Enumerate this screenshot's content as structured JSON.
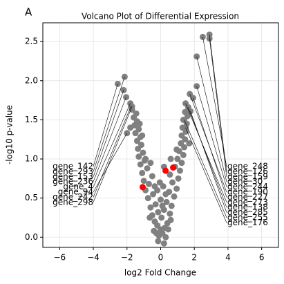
{
  "chart_data": {
    "type": "scatter",
    "panel_label": "A",
    "title": "Volcano Plot of Differential Expression",
    "xlabel": "log2 Fold Change",
    "ylabel": "-log10 p-value",
    "xlim": [
      -7,
      7
    ],
    "ylim": [
      -0.13,
      2.74
    ],
    "xticks": [
      {
        "value": -6,
        "label": "−6"
      },
      {
        "value": -4,
        "label": "−4"
      },
      {
        "value": -2,
        "label": "−2"
      },
      0,
      2,
      4,
      6
    ],
    "yticks": [
      {
        "value": 0,
        "label": "0.0"
      },
      0.5,
      {
        "value": 1,
        "label": "1.0"
      },
      1.5,
      {
        "value": 2,
        "label": "2.0"
      },
      2.5
    ],
    "grid": true,
    "series": [
      {
        "color": "#808080",
        "x": [
          -0.1,
          0.1,
          0.0,
          -0.2,
          0.25,
          -0.35,
          0.4,
          0.05,
          -0.5,
          0.55,
          -0.15,
          0.2,
          -0.6,
          0.65,
          -0.3,
          0.35,
          0.0,
          -0.75,
          0.8,
          -0.45,
          0.5,
          -0.9,
          0.95,
          -0.2,
          0.15,
          -0.7,
          0.7,
          -1.0,
          1.05,
          -0.5,
          0.55,
          -1.1,
          1.15,
          -0.8,
          0.85,
          -1.2,
          1.25,
          -0.95,
          1.0,
          -1.3,
          1.35,
          -1.05,
          1.1,
          -1.35,
          1.4,
          -1.15,
          1.2,
          -1.4,
          1.45,
          -1.2,
          1.25,
          -1.5,
          1.5,
          -1.3,
          1.3,
          -1.55,
          1.55,
          -1.4,
          1.35,
          -1.6,
          1.6,
          -1.45,
          1.45,
          -1.7,
          -1.1,
          -1.25,
          -0.25,
          0.3,
          -0.4,
          0.45,
          0.6,
          -0.65,
          0.1,
          -0.05,
          0.3,
          -0.35,
          0.2,
          -0.9,
          0.95,
          -0.6,
          0.6,
          -0.15,
          0.2,
          1.7,
          -1.8
        ],
        "values": [
          0.02,
          0.05,
          0.1,
          0.15,
          0.12,
          0.2,
          0.18,
          0.25,
          0.28,
          0.3,
          0.32,
          0.35,
          0.38,
          0.4,
          0.42,
          0.45,
          0.48,
          0.5,
          0.52,
          0.55,
          0.58,
          0.6,
          0.62,
          0.6,
          0.65,
          0.68,
          0.7,
          0.72,
          0.75,
          0.78,
          0.8,
          0.82,
          0.85,
          0.88,
          0.9,
          0.93,
          0.95,
          0.98,
          1.0,
          1.03,
          1.05,
          1.08,
          1.1,
          1.13,
          1.15,
          1.18,
          1.2,
          1.23,
          1.25,
          1.28,
          1.3,
          1.33,
          1.35,
          1.38,
          1.4,
          1.43,
          1.45,
          1.48,
          1.5,
          1.53,
          1.55,
          1.58,
          1.6,
          1.63,
          1.3,
          1.45,
          0.05,
          0.0,
          0.08,
          0.1,
          0.22,
          0.25,
          0.4,
          0.7,
          0.55,
          0.65,
          0.9,
          1.0,
          1.12,
          0.95,
          1.0,
          -0.05,
          -0.08,
          1.2,
          1.4
        ]
      },
      {
        "color": "#ff0000",
        "x": [
          -1.07,
          0.29,
          0.74
        ],
        "values": [
          0.64,
          0.85,
          0.89
        ]
      }
    ],
    "annotations_left": [
      {
        "text": "gene_142",
        "x": -2.55,
        "y": 1.96
      },
      {
        "text": "gene_293",
        "x": -2.14,
        "y": 2.05
      },
      {
        "text": "gene_153",
        "x": -2.2,
        "y": 1.88
      },
      {
        "text": "gene_236",
        "x": -2.05,
        "y": 1.79
      },
      {
        "text": "gene_4",
        "x": -1.8,
        "y": 1.71
      },
      {
        "text": "gene_94",
        "x": -2.0,
        "y": 1.33
      },
      {
        "text": "gene_242",
        "x": -1.75,
        "y": 1.68
      },
      {
        "text": "gene_298",
        "x": -1.7,
        "y": 1.67
      }
    ],
    "annotations_right": [
      {
        "text": "gene_248",
        "x": 2.5,
        "y": 2.56
      },
      {
        "text": "gene_126",
        "x": 2.9,
        "y": 2.59
      },
      {
        "text": "gene_159",
        "x": 2.9,
        "y": 2.54
      },
      {
        "text": "gene_30",
        "x": 2.14,
        "y": 2.31
      },
      {
        "text": "gene_244",
        "x": 2.14,
        "y": 1.93
      },
      {
        "text": "gene_190",
        "x": 1.73,
        "y": 1.83
      },
      {
        "text": "gene_227",
        "x": 1.93,
        "y": 1.78
      },
      {
        "text": "gene_273",
        "x": 1.48,
        "y": 1.71
      },
      {
        "text": "gene_138",
        "x": 1.64,
        "y": 1.66
      },
      {
        "text": "gene_285",
        "x": 1.77,
        "y": 1.61
      },
      {
        "text": "gene_255",
        "x": 1.4,
        "y": 1.5
      },
      {
        "text": "gene_176",
        "x": 1.48,
        "y": 1.4
      }
    ]
  }
}
